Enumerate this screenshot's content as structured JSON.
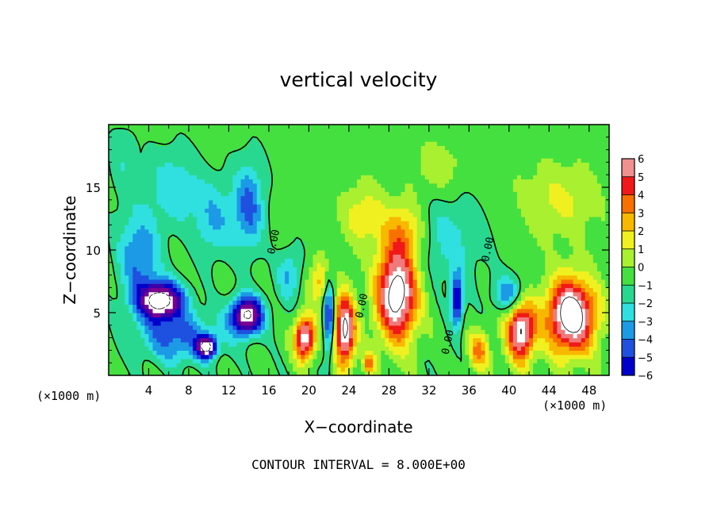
{
  "chart_data": {
    "type": "heatmap",
    "title": "vertical velocity",
    "xlabel": "X−coordinate",
    "ylabel": "Z−coordinate",
    "x_unit_label": "(×1000 m)",
    "x_unit_label_right": "(×1000 m)",
    "xlim": [
      0,
      50
    ],
    "ylim": [
      0,
      20
    ],
    "x_ticks": [
      4,
      8,
      12,
      16,
      20,
      24,
      28,
      32,
      36,
      40,
      44,
      48
    ],
    "y_ticks": [
      5,
      10,
      15
    ],
    "colorbar": {
      "min": -6,
      "max": 6,
      "ticks": [
        6,
        5,
        4,
        3,
        2,
        1,
        0,
        -1,
        -2,
        -3,
        -4,
        -5,
        -6
      ],
      "tick_labels": [
        "6",
        "5",
        "4",
        "3",
        "2",
        "1",
        "0",
        "−1",
        "−2",
        "−3",
        "−4",
        "−5",
        "−6"
      ]
    },
    "contour_labels": [
      "0.00",
      "0.00",
      "0.00",
      "0.00"
    ],
    "footer": "CONTOUR INTERVAL = 8.000E+00",
    "features": [
      {
        "kind": "updraft",
        "x": 28.8,
        "z": 6.5,
        "sx": 2.0,
        "sz": 3.6,
        "amp": 9.0
      },
      {
        "kind": "updraft",
        "x": 46.2,
        "z": 4.8,
        "sx": 2.4,
        "sz": 2.9,
        "amp": 9.5
      },
      {
        "kind": "updraft",
        "x": 23.6,
        "z": 3.6,
        "sx": 1.0,
        "sz": 2.8,
        "amp": 8.5
      },
      {
        "kind": "updraft",
        "x": 19.6,
        "z": 3.0,
        "sx": 1.0,
        "sz": 1.7,
        "amp": 8.0
      },
      {
        "kind": "updraft",
        "x": 41.2,
        "z": 3.6,
        "sx": 1.4,
        "sz": 2.4,
        "amp": 8.0
      },
      {
        "kind": "updraft",
        "x": 29.5,
        "z": 11.5,
        "sx": 2.0,
        "sz": 2.2,
        "amp": 3.0
      },
      {
        "kind": "updraft",
        "x": 37.0,
        "z": 2.0,
        "sx": 1.0,
        "sz": 1.5,
        "amp": 4.0
      },
      {
        "kind": "updraft",
        "x": 21.0,
        "z": 7.5,
        "sx": 1.0,
        "sz": 1.8,
        "amp": 3.0
      },
      {
        "kind": "updraft",
        "x": 25.5,
        "z": 12.8,
        "sx": 2.2,
        "sz": 2.5,
        "amp": 2.2
      },
      {
        "kind": "updraft",
        "x": 45.0,
        "z": 14.0,
        "sx": 4.0,
        "sz": 3.0,
        "amp": 1.8
      },
      {
        "kind": "updraft",
        "x": 33.0,
        "z": 16.5,
        "sx": 3.0,
        "sz": 2.5,
        "amp": 1.2
      },
      {
        "kind": "updraft",
        "x": 26.0,
        "z": 1.0,
        "sx": 0.6,
        "sz": 0.8,
        "amp": 4.0
      },
      {
        "kind": "downdraft",
        "x": 5.2,
        "z": 6.0,
        "sx": 2.2,
        "sz": 1.5,
        "amp": -9.5
      },
      {
        "kind": "downdraft",
        "x": 13.8,
        "z": 4.8,
        "sx": 1.6,
        "sz": 1.5,
        "amp": -9.0
      },
      {
        "kind": "downdraft",
        "x": 9.8,
        "z": 2.3,
        "sx": 0.9,
        "sz": 0.8,
        "amp": -8.5
      },
      {
        "kind": "downdraft",
        "x": 3.0,
        "z": 9.5,
        "sx": 2.0,
        "sz": 3.5,
        "amp": -3.5
      },
      {
        "kind": "downdraft",
        "x": 7.0,
        "z": 3.0,
        "sx": 4.0,
        "sz": 2.0,
        "amp": -3.8
      },
      {
        "kind": "downdraft",
        "x": 14.0,
        "z": 13.5,
        "sx": 1.5,
        "sz": 3.5,
        "amp": -3.8
      },
      {
        "kind": "downdraft",
        "x": 6.5,
        "z": 15.0,
        "sx": 2.5,
        "sz": 3.0,
        "amp": -2.2
      },
      {
        "kind": "downdraft",
        "x": 10.5,
        "z": 12.5,
        "sx": 2.0,
        "sz": 3.0,
        "amp": -2.5
      },
      {
        "kind": "downdraft",
        "x": 34.8,
        "z": 6.0,
        "sx": 0.6,
        "sz": 2.0,
        "amp": -6.0
      },
      {
        "kind": "downdraft",
        "x": 34.0,
        "z": 11.0,
        "sx": 3.5,
        "sz": 3.5,
        "amp": -1.8
      },
      {
        "kind": "downdraft",
        "x": 22.0,
        "z": 4.5,
        "sx": 0.5,
        "sz": 3.0,
        "amp": -5.0
      },
      {
        "kind": "downdraft",
        "x": 40.0,
        "z": 6.5,
        "sx": 1.5,
        "sz": 1.5,
        "amp": -3.5
      },
      {
        "kind": "downdraft",
        "x": 18.0,
        "z": 8.0,
        "sx": 1.2,
        "sz": 2.0,
        "amp": -2.5
      },
      {
        "kind": "downdraft",
        "x": 1.5,
        "z": 17.0,
        "sx": 1.5,
        "sz": 3.0,
        "amp": -1.2
      }
    ]
  }
}
